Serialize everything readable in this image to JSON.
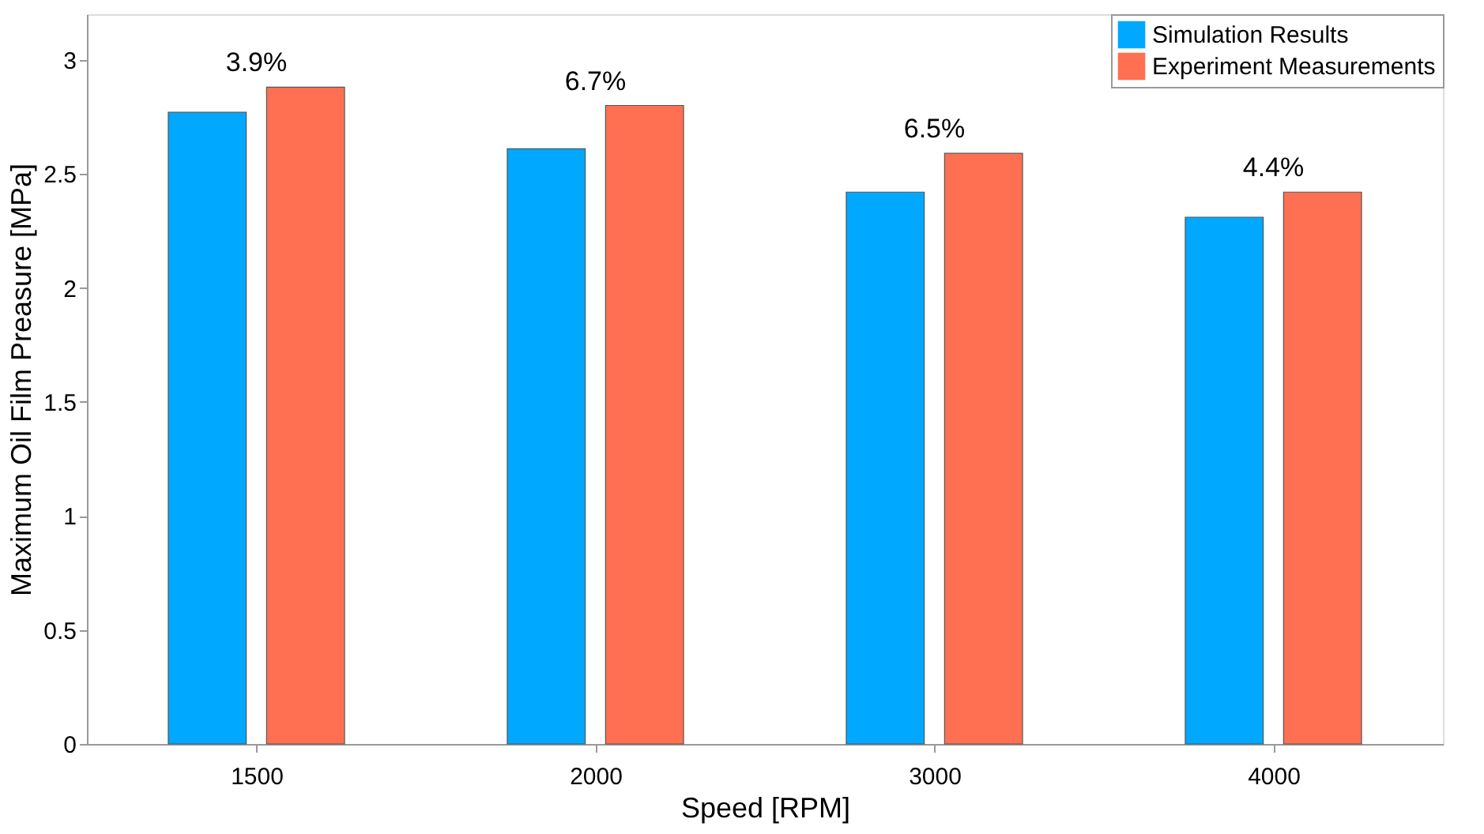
{
  "chart_data": {
    "type": "bar",
    "xlabel": "Speed   [RPM]",
    "ylabel": "Maximum Oil Film Preasure   [MPa]",
    "categories": [
      "1500",
      "2000",
      "3000",
      "4000"
    ],
    "series": [
      {
        "name": "Simulation Results",
        "color": "#00a8ff",
        "values": [
          2.77,
          2.61,
          2.42,
          2.31
        ]
      },
      {
        "name": "Experiment Measurements",
        "color": "#ff7052",
        "values": [
          2.88,
          2.8,
          2.59,
          2.42
        ]
      }
    ],
    "ylim": [
      0,
      3.2
    ],
    "yticks": [
      0,
      0.5,
      1,
      1.5,
      2,
      2.5,
      3
    ],
    "grid": false,
    "legend": "top right",
    "annotations": [
      "3.9%",
      "6.7%",
      "6.5%",
      "4.4%"
    ]
  }
}
